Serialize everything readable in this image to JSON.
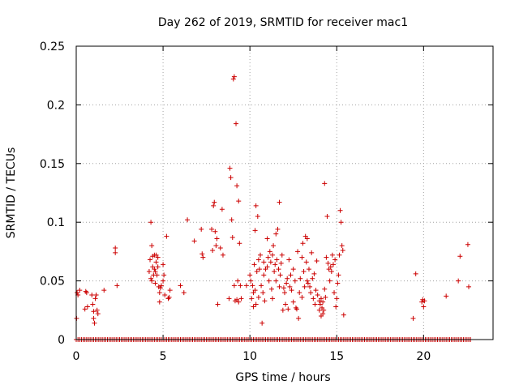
{
  "chart_data": {
    "type": "scatter",
    "title": "Day 262 of 2019, SRMTID for receiver mac1",
    "xlabel": "GPS time / hours",
    "ylabel": "SRMTID / TECUs",
    "xlim": [
      0,
      24
    ],
    "ylim": [
      0,
      0.25
    ],
    "xticks": [
      0,
      5,
      10,
      15,
      20
    ],
    "xtick_labels": [
      "0",
      "5",
      "10",
      "15",
      "20"
    ],
    "yticks": [
      0,
      0.05,
      0.1,
      0.15,
      0.2,
      0.25
    ],
    "ytick_labels": [
      "0",
      "0.05",
      "0.1",
      "0.15",
      "0.2",
      "0.25"
    ],
    "grid": true,
    "marker": "+",
    "color": "#cc0000",
    "zero_baseline": {
      "x_start": 0.0,
      "x_end": 22.7,
      "step": 0.1,
      "y": 0
    },
    "points": [
      [
        0.02,
        0.018
      ],
      [
        0.05,
        0.04
      ],
      [
        0.1,
        0.038
      ],
      [
        0.2,
        0.042
      ],
      [
        0.5,
        0.026
      ],
      [
        0.55,
        0.041
      ],
      [
        0.6,
        0.04
      ],
      [
        0.65,
        0.028
      ],
      [
        0.9,
        0.038
      ],
      [
        0.95,
        0.03
      ],
      [
        1.0,
        0.024
      ],
      [
        1.0,
        0.018
      ],
      [
        1.05,
        0.014
      ],
      [
        1.1,
        0.035
      ],
      [
        1.15,
        0.038
      ],
      [
        1.2,
        0.025
      ],
      [
        1.25,
        0.022
      ],
      [
        1.6,
        0.042
      ],
      [
        2.25,
        0.078
      ],
      [
        2.25,
        0.074
      ],
      [
        2.35,
        0.046
      ],
      [
        4.2,
        0.058
      ],
      [
        4.25,
        0.068
      ],
      [
        4.3,
        0.052
      ],
      [
        4.3,
        0.1
      ],
      [
        4.35,
        0.08
      ],
      [
        4.35,
        0.05
      ],
      [
        4.4,
        0.071
      ],
      [
        4.4,
        0.062
      ],
      [
        4.45,
        0.055
      ],
      [
        4.5,
        0.06
      ],
      [
        4.5,
        0.072
      ],
      [
        4.55,
        0.058
      ],
      [
        4.55,
        0.048
      ],
      [
        4.6,
        0.066
      ],
      [
        4.6,
        0.072
      ],
      [
        4.65,
        0.055
      ],
      [
        4.7,
        0.07
      ],
      [
        4.7,
        0.062
      ],
      [
        4.75,
        0.045
      ],
      [
        4.8,
        0.04
      ],
      [
        4.8,
        0.032
      ],
      [
        4.85,
        0.044
      ],
      [
        4.9,
        0.046
      ],
      [
        5.0,
        0.05
      ],
      [
        5.0,
        0.064
      ],
      [
        5.05,
        0.055
      ],
      [
        5.1,
        0.038
      ],
      [
        5.2,
        0.088
      ],
      [
        5.3,
        0.035
      ],
      [
        5.35,
        0.036
      ],
      [
        5.4,
        0.042
      ],
      [
        6.0,
        0.046
      ],
      [
        6.2,
        0.04
      ],
      [
        6.4,
        0.102
      ],
      [
        6.8,
        0.084
      ],
      [
        7.2,
        0.094
      ],
      [
        7.25,
        0.073
      ],
      [
        7.3,
        0.07
      ],
      [
        7.8,
        0.094
      ],
      [
        7.85,
        0.076
      ],
      [
        7.9,
        0.114
      ],
      [
        7.95,
        0.117
      ],
      [
        8.0,
        0.092
      ],
      [
        8.05,
        0.08
      ],
      [
        8.1,
        0.086
      ],
      [
        8.15,
        0.03
      ],
      [
        8.3,
        0.078
      ],
      [
        8.4,
        0.111
      ],
      [
        8.45,
        0.072
      ],
      [
        8.8,
        0.035
      ],
      [
        8.85,
        0.146
      ],
      [
        8.9,
        0.138
      ],
      [
        8.95,
        0.102
      ],
      [
        9.0,
        0.087
      ],
      [
        9.05,
        0.222
      ],
      [
        9.1,
        0.224
      ],
      [
        9.1,
        0.046
      ],
      [
        9.15,
        0.033
      ],
      [
        9.2,
        0.184
      ],
      [
        9.25,
        0.131
      ],
      [
        9.25,
        0.034
      ],
      [
        9.3,
        0.05
      ],
      [
        9.35,
        0.032
      ],
      [
        9.35,
        0.118
      ],
      [
        9.4,
        0.082
      ],
      [
        9.45,
        0.046
      ],
      [
        9.5,
        0.035
      ],
      [
        9.8,
        0.046
      ],
      [
        10.0,
        0.055
      ],
      [
        10.05,
        0.05
      ],
      [
        10.1,
        0.035
      ],
      [
        10.15,
        0.046
      ],
      [
        10.2,
        0.04
      ],
      [
        10.2,
        0.028
      ],
      [
        10.25,
        0.064
      ],
      [
        10.3,
        0.042
      ],
      [
        10.3,
        0.093
      ],
      [
        10.35,
        0.114
      ],
      [
        10.35,
        0.03
      ],
      [
        10.4,
        0.058
      ],
      [
        10.45,
        0.105
      ],
      [
        10.5,
        0.068
      ],
      [
        10.5,
        0.036
      ],
      [
        10.55,
        0.06
      ],
      [
        10.6,
        0.072
      ],
      [
        10.65,
        0.046
      ],
      [
        10.7,
        0.014
      ],
      [
        10.75,
        0.04
      ],
      [
        10.8,
        0.055
      ],
      [
        10.8,
        0.066
      ],
      [
        10.85,
        0.033
      ],
      [
        10.9,
        0.06
      ],
      [
        11.0,
        0.086
      ],
      [
        11.0,
        0.062
      ],
      [
        11.05,
        0.07
      ],
      [
        11.1,
        0.05
      ],
      [
        11.15,
        0.075
      ],
      [
        11.2,
        0.066
      ],
      [
        11.25,
        0.043
      ],
      [
        11.3,
        0.072
      ],
      [
        11.3,
        0.035
      ],
      [
        11.35,
        0.08
      ],
      [
        11.4,
        0.058
      ],
      [
        11.45,
        0.064
      ],
      [
        11.5,
        0.09
      ],
      [
        11.5,
        0.05
      ],
      [
        11.55,
        0.068
      ],
      [
        11.6,
        0.094
      ],
      [
        11.65,
        0.06
      ],
      [
        11.7,
        0.117
      ],
      [
        11.7,
        0.045
      ],
      [
        11.75,
        0.055
      ],
      [
        11.8,
        0.065
      ],
      [
        11.85,
        0.072
      ],
      [
        11.9,
        0.025
      ],
      [
        11.95,
        0.044
      ],
      [
        12.0,
        0.04
      ],
      [
        12.05,
        0.03
      ],
      [
        12.1,
        0.048
      ],
      [
        12.15,
        0.052
      ],
      [
        12.2,
        0.026
      ],
      [
        12.25,
        0.068
      ],
      [
        12.3,
        0.045
      ],
      [
        12.35,
        0.055
      ],
      [
        12.4,
        0.042
      ],
      [
        12.5,
        0.06
      ],
      [
        12.5,
        0.032
      ],
      [
        12.6,
        0.05
      ],
      [
        12.65,
        0.027
      ],
      [
        12.7,
        0.026
      ],
      [
        12.75,
        0.075
      ],
      [
        12.8,
        0.018
      ],
      [
        12.85,
        0.04
      ],
      [
        12.9,
        0.052
      ],
      [
        13.0,
        0.07
      ],
      [
        13.0,
        0.036
      ],
      [
        13.05,
        0.082
      ],
      [
        13.1,
        0.058
      ],
      [
        13.15,
        0.045
      ],
      [
        13.2,
        0.088
      ],
      [
        13.25,
        0.066
      ],
      [
        13.3,
        0.086
      ],
      [
        13.3,
        0.05
      ],
      [
        13.35,
        0.048
      ],
      [
        13.4,
        0.06
      ],
      [
        13.45,
        0.045
      ],
      [
        13.5,
        0.04
      ],
      [
        13.55,
        0.074
      ],
      [
        13.6,
        0.052
      ],
      [
        13.65,
        0.035
      ],
      [
        13.7,
        0.056
      ],
      [
        13.75,
        0.03
      ],
      [
        13.8,
        0.042
      ],
      [
        13.85,
        0.067
      ],
      [
        13.9,
        0.038
      ],
      [
        14.0,
        0.025
      ],
      [
        14.0,
        0.033
      ],
      [
        14.05,
        0.03
      ],
      [
        14.1,
        0.02
      ],
      [
        14.1,
        0.035
      ],
      [
        14.15,
        0.027
      ],
      [
        14.2,
        0.022
      ],
      [
        14.2,
        0.032
      ],
      [
        14.25,
        0.025
      ],
      [
        14.3,
        0.043
      ],
      [
        14.3,
        0.133
      ],
      [
        14.35,
        0.036
      ],
      [
        14.4,
        0.07
      ],
      [
        14.45,
        0.105
      ],
      [
        14.5,
        0.065
      ],
      [
        14.55,
        0.06
      ],
      [
        14.6,
        0.05
      ],
      [
        14.65,
        0.062
      ],
      [
        14.7,
        0.058
      ],
      [
        14.75,
        0.072
      ],
      [
        14.8,
        0.064
      ],
      [
        14.85,
        0.04
      ],
      [
        14.9,
        0.068
      ],
      [
        14.95,
        0.028
      ],
      [
        15.0,
        0.035
      ],
      [
        15.05,
        0.048
      ],
      [
        15.1,
        0.055
      ],
      [
        15.15,
        0.072
      ],
      [
        15.2,
        0.11
      ],
      [
        15.25,
        0.1
      ],
      [
        15.3,
        0.08
      ],
      [
        15.35,
        0.076
      ],
      [
        15.4,
        0.021
      ],
      [
        19.4,
        0.018
      ],
      [
        19.55,
        0.056
      ],
      [
        19.9,
        0.032
      ],
      [
        19.95,
        0.034
      ],
      [
        20.0,
        0.028
      ],
      [
        20.05,
        0.033
      ],
      [
        21.3,
        0.037
      ],
      [
        22.0,
        0.05
      ],
      [
        22.1,
        0.071
      ],
      [
        22.55,
        0.081
      ],
      [
        22.6,
        0.045
      ]
    ]
  }
}
